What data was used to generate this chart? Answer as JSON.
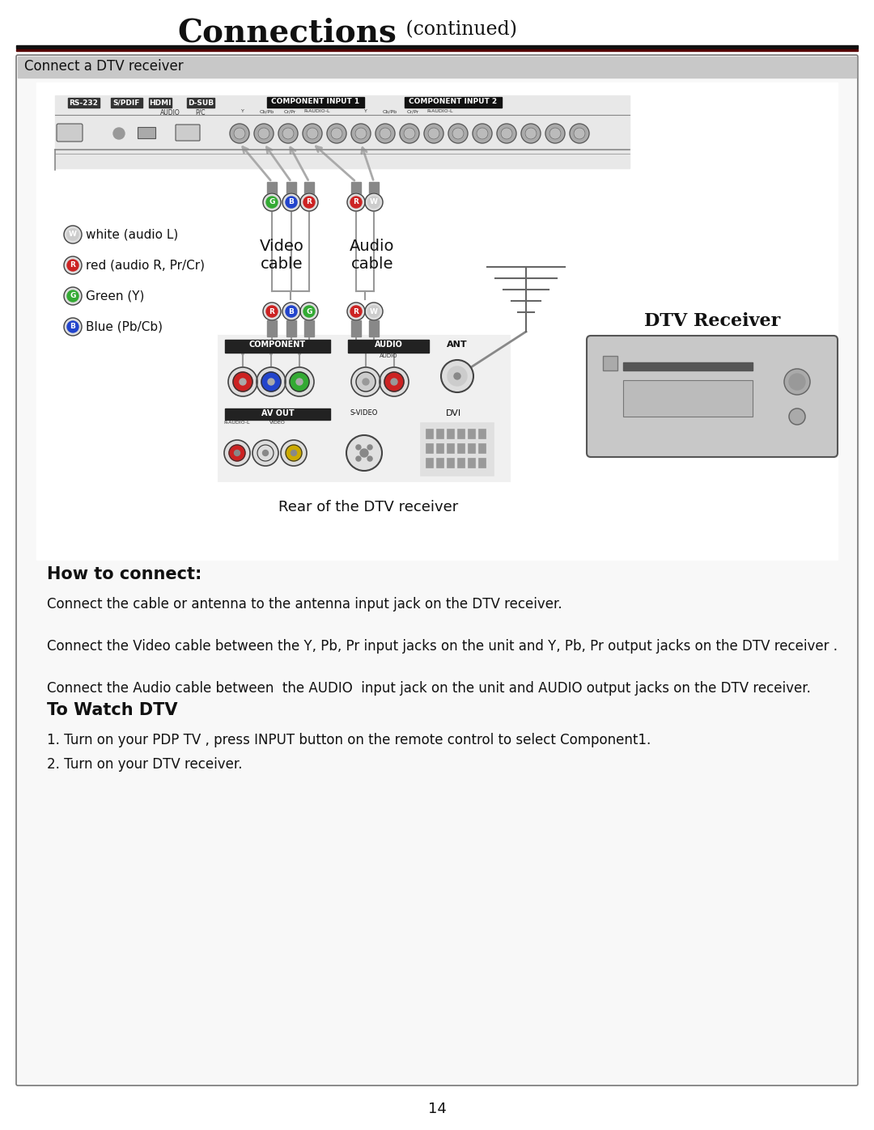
{
  "page_title": "Connections",
  "page_title_suffix": " (continued)",
  "page_number": "14",
  "box_title": "Connect a DTV receiver",
  "section1_title": "How to connect:",
  "section1_lines": [
    "Connect the cable or antenna to the antenna input jack on the DTV receiver.",
    "Connect the Video cable between the Y, Pb, Pr input jacks on the unit and Y, Pb, Pr output jacks on the DTV receiver .",
    "Connect the Audio cable between  the AUDIO  input jack on the unit and AUDIO output jacks on the DTV receiver."
  ],
  "section2_title": "To Watch DTV",
  "section2_lines": [
    "1. Turn on your PDP TV , press INPUT button on the remote control to select Component1.",
    "2. Turn on your DTV receiver."
  ],
  "legend_lines": [
    "W  white (audio L)",
    "R  red (audio R, Pr/Cr)",
    "G  Green (Y)",
    "B  Blue (Pb/Cb)"
  ],
  "legend_circle_colors": [
    "#cccccc",
    "#cc2222",
    "#33aa33",
    "#2244cc"
  ],
  "legend_circle_labels": [
    "W",
    "R",
    "G",
    "B"
  ],
  "video_cable_label": "Video\ncable",
  "audio_cable_label": "Audio\ncable",
  "dtv_receiver_label": "DTV Receiver",
  "rear_label": "Rear of the DTV receiver",
  "bg_color": "#ffffff",
  "box_bg": "#c8c8c8",
  "box_border": "#888888",
  "text_color": "#111111"
}
